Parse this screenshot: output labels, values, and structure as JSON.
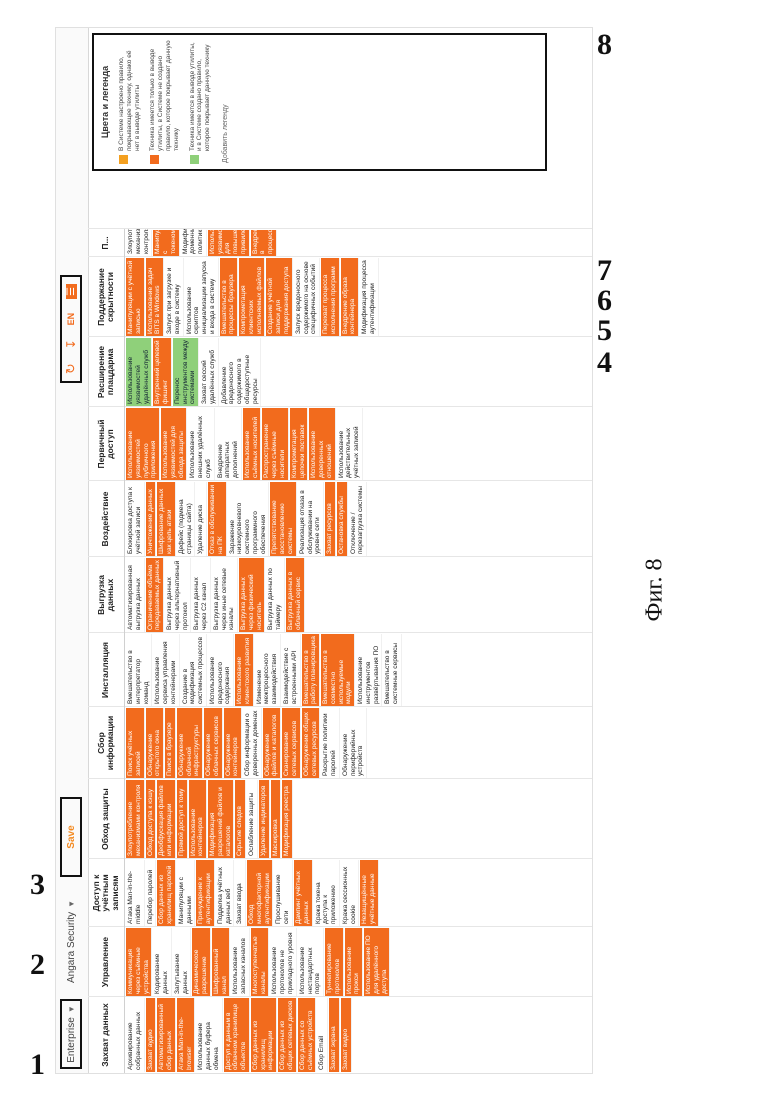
{
  "figure_numbers": [
    "1",
    "2",
    "3",
    "4",
    "5",
    "6",
    "7",
    "8"
  ],
  "caption": "Фиг. 8",
  "header": {
    "enterprise": "Enterprise",
    "product": "Angara Security",
    "save": "Save",
    "lang": "EN"
  },
  "columns": [
    {
      "title": "Захват данных",
      "cells": [
        {
          "t": "Архивирование собранных данных",
          "c": ""
        },
        {
          "t": "Захват аудио",
          "c": "o"
        },
        {
          "t": "Автоматизированный сбор данных",
          "c": "o"
        },
        {
          "t": "Атака Man-in-the-browser",
          "c": "o"
        },
        {
          "t": "Использование данных буфера обмена",
          "c": ""
        },
        {
          "t": "Доступ к данным в облачном хранилище объектов",
          "c": "o"
        },
        {
          "t": "Сбор данных из хранилищ информации",
          "c": "o"
        },
        {
          "t": "Сбор данных из общих сетевых дисков",
          "c": "o"
        },
        {
          "t": "Сбор данных со съёмных устройств",
          "c": "o"
        },
        {
          "t": "Сбор Email",
          "c": ""
        },
        {
          "t": "Захват экрана",
          "c": "o"
        },
        {
          "t": "Захват видео",
          "c": "o"
        }
      ]
    },
    {
      "title": "Управление",
      "cells": [
        {
          "t": "Коммуникация через съёмные устройства",
          "c": "o"
        },
        {
          "t": "Кодирование данных",
          "c": ""
        },
        {
          "t": "Запутывание данных",
          "c": ""
        },
        {
          "t": "Динамическое разрешение",
          "c": "o"
        },
        {
          "t": "Шифрованный канал",
          "c": "o"
        },
        {
          "t": "Использование запасных каналов",
          "c": ""
        },
        {
          "t": "Многоступенчатые каналы",
          "c": "o"
        },
        {
          "t": "Использование протоколов не прикладного уровня",
          "c": ""
        },
        {
          "t": "Использование нестандартных портов",
          "c": ""
        },
        {
          "t": "Туннелирование протоколов",
          "c": "o"
        },
        {
          "t": "Использование прокси",
          "c": "o"
        },
        {
          "t": "Использование ПО для удалённого доступа",
          "c": "o"
        }
      ]
    },
    {
      "title": "Доступ к учётным записям",
      "cells": [
        {
          "t": "Атака Man-in-the-middle",
          "c": ""
        },
        {
          "t": "Перебор паролей",
          "c": ""
        },
        {
          "t": "Сбор данных из хранилищ паролей",
          "c": "o"
        },
        {
          "t": "Манипуляции с данными",
          "c": ""
        },
        {
          "t": "Принуждение к аутентификации",
          "c": "o"
        },
        {
          "t": "Подделка учётных данных веб",
          "c": ""
        },
        {
          "t": "Захват ввода",
          "c": ""
        },
        {
          "t": "Обход многофакторной аутентификации",
          "c": "o"
        },
        {
          "t": "Прослушивание сети",
          "c": ""
        },
        {
          "t": "Дампинг учётных данных",
          "c": "o"
        },
        {
          "t": "Кража токена доступа к приложению",
          "c": ""
        },
        {
          "t": "Кража сессионных cookie",
          "c": ""
        },
        {
          "t": "Незащищённые учётные данные",
          "c": "o"
        }
      ]
    },
    {
      "title": "Обход защиты",
      "cells": [
        {
          "t": "Злоупотребление механизмами контроля",
          "c": "o"
        },
        {
          "t": "Обход доступа к кэшу",
          "c": "o"
        },
        {
          "t": "Деобфускация файлов или информации",
          "c": "o"
        },
        {
          "t": "Прямой доступ к тому",
          "c": "o"
        },
        {
          "t": "Использование контейнеров",
          "c": "o"
        },
        {
          "t": "Модификация разрешений файлов и каталогов",
          "c": "o"
        },
        {
          "t": "Скрытие следов",
          "c": "o"
        },
        {
          "t": "Ослабление защиты",
          "c": ""
        },
        {
          "t": "Удаление индикаторов",
          "c": "o"
        },
        {
          "t": "Маскировка",
          "c": "o"
        },
        {
          "t": "Модификация реестра",
          "c": "o"
        }
      ]
    },
    {
      "title": "Сбор информации",
      "cells": [
        {
          "t": "Поиск учётных записей",
          "c": "o"
        },
        {
          "t": "Обнаружение открытого окна",
          "c": "o"
        },
        {
          "t": "Поиск в браузере",
          "c": "o"
        },
        {
          "t": "Обнаружение облачной инфраструктуры",
          "c": "o"
        },
        {
          "t": "Обнаружение облачных сервисов",
          "c": "o"
        },
        {
          "t": "Обнаружение контейнеров",
          "c": "o"
        },
        {
          "t": "Сбор информации о доверенных доменах",
          "c": ""
        },
        {
          "t": "Обнаружение файлов и каталогов",
          "c": "o"
        },
        {
          "t": "Сканирование сетевых сервисов",
          "c": "o"
        },
        {
          "t": "Обнаружение общих сетевых ресурсов",
          "c": "o"
        },
        {
          "t": "Раскрытие политики паролей",
          "c": ""
        },
        {
          "t": "Обнаружение периферийных устройств",
          "c": ""
        }
      ]
    },
    {
      "title": "Инсталляция",
      "cells": [
        {
          "t": "Вмешательство в интерпретатор команд",
          "c": ""
        },
        {
          "t": "Использование сервиса управления контейнерами",
          "c": ""
        },
        {
          "t": "Создание в модификация системных процессов",
          "c": ""
        },
        {
          "t": "Использование вредоносного содержания",
          "c": ""
        },
        {
          "t": "Использование клиентского развития",
          "c": "o"
        },
        {
          "t": "Изменение межпроцессного взаимодействия",
          "c": ""
        },
        {
          "t": "Взаимодействие с встроенными API",
          "c": ""
        },
        {
          "t": "Вмешательство в работу планировщика",
          "c": "o"
        },
        {
          "t": "Вмешательство в совместно используемые модули",
          "c": "o"
        },
        {
          "t": "Использование инструментов развёртывания ПО",
          "c": ""
        },
        {
          "t": "Вмешательство в системные сервисы",
          "c": ""
        }
      ]
    },
    {
      "title": "Выгрузка данных",
      "cells": [
        {
          "t": "Автоматизированная выгрузка данных",
          "c": ""
        },
        {
          "t": "Ограничение объёма передаваемых данных",
          "c": "o"
        },
        {
          "t": "Выгрузка данных через альтернативный протокол",
          "c": ""
        },
        {
          "t": "Выгрузка данных через C2 канал",
          "c": ""
        },
        {
          "t": "Выгрузка данных через иные сетевые каналы",
          "c": ""
        },
        {
          "t": "Выгрузка данных через физический носитель",
          "c": "o"
        },
        {
          "t": "Выгрузка данных по таймеру",
          "c": ""
        },
        {
          "t": "Выгрузка данных в облачный сервис",
          "c": "o"
        }
      ]
    },
    {
      "title": "Воздействие",
      "cells": [
        {
          "t": "Блокировка доступа к учётной записи",
          "c": ""
        },
        {
          "t": "Уничтожение данных",
          "c": "o"
        },
        {
          "t": "Шифрование данных как цель атаки",
          "c": "o"
        },
        {
          "t": "Дефейс (подмена страницы сайта)",
          "c": ""
        },
        {
          "t": "Удаление диска",
          "c": ""
        },
        {
          "t": "Отказ в обслуживании на ПК",
          "c": "o"
        },
        {
          "t": "Заражение низкоуровневого системного программного обеспечения",
          "c": ""
        },
        {
          "t": "Препятствование восстановлению системы",
          "c": "o"
        },
        {
          "t": "Реализация отказа в обслуживании на уровне сети",
          "c": ""
        },
        {
          "t": "Захват ресурсов",
          "c": "o"
        },
        {
          "t": "Остановка службы",
          "c": "o"
        },
        {
          "t": "Отключение / перезагрузка системы",
          "c": ""
        }
      ]
    },
    {
      "title": "Первичный доступ",
      "cells": [
        {
          "t": "Использование уязвимостей публичного приложения",
          "c": "o"
        },
        {
          "t": "Использование уязвимостей для обхода защиты",
          "c": "o"
        },
        {
          "t": "Использование внешних удалённых служб",
          "c": ""
        },
        {
          "t": "Внедрение аппаратных дополнений",
          "c": ""
        },
        {
          "t": "Использование съёмных носителей",
          "c": "o"
        },
        {
          "t": "Распространение через съёмные носители",
          "c": "o"
        },
        {
          "t": "Компрометация цепочки поставок",
          "c": "o"
        },
        {
          "t": "Использование доверенных отношений",
          "c": "o"
        },
        {
          "t": "Использование действительных учётных записей",
          "c": ""
        }
      ]
    },
    {
      "title": "Расширение плацдарма",
      "cells": [
        {
          "t": "Использование уязвимостей удалённых служб",
          "c": "g"
        },
        {
          "t": "Внутренний целевой фишинг",
          "c": "o"
        },
        {
          "t": "Перенос инструментов между системами",
          "c": "g"
        },
        {
          "t": "Захват сессий удалённых служб",
          "c": ""
        },
        {
          "t": "Добавление вредоносного содержимого в общедоступные ресурсы",
          "c": ""
        }
      ]
    },
    {
      "title": "Поддержание скрытности",
      "cells": [
        {
          "t": "Манипуляции с учётной записью",
          "c": "o"
        },
        {
          "t": "Использование задач BITS в Windows",
          "c": "o"
        },
        {
          "t": "Запуск при загрузке и входе в систему",
          "c": ""
        },
        {
          "t": "Использование скриптов инициализации запуска и входа в систему",
          "c": ""
        },
        {
          "t": "Вмешательство в процессы браузера",
          "c": "o"
        },
        {
          "t": "Компрометация клиентских исполняемых файлов",
          "c": "o"
        },
        {
          "t": "Создание учётной записи для поддержания доступа",
          "c": "o"
        },
        {
          "t": "Запуск вредоносного содержимого на основе специфичных событий",
          "c": ""
        },
        {
          "t": "Перехват процесса исполнения программ",
          "c": "o"
        },
        {
          "t": "Внедрение образа контейнера",
          "c": "o"
        },
        {
          "t": "Модификация процесса аутентификации",
          "c": ""
        }
      ]
    },
    {
      "title": "П...",
      "cells": [
        {
          "t": "Злоупотребление механизмами контроля",
          "c": ""
        },
        {
          "t": "Манипуляции с токеном",
          "c": "o"
        },
        {
          "t": "Модификация доменных политик",
          "c": ""
        },
        {
          "t": "Использование уязвимостей для повышения привилегий",
          "c": "o"
        },
        {
          "t": "Внедрение в процессы",
          "c": "o"
        }
      ]
    }
  ],
  "legend": {
    "title": "Цвета и легенда",
    "items": [
      {
        "text": "В Системе настроено правило, покрывающее технику, однако её нет в выводе утилиты",
        "color": "#f4a020"
      },
      {
        "text": "Техника имеется только в выводе утилиты, в Системе не создано правило, которое покрывает данную технику",
        "color": "#f26b1d"
      },
      {
        "text": "Техника имеется в выводе утилиты, и в Системе создано правило, которое покрывает данную технику",
        "color": "#8fd07a"
      }
    ],
    "add": "Добавить легенду"
  }
}
